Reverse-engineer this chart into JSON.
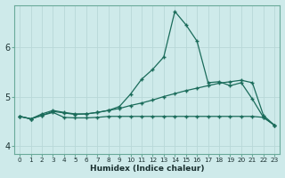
{
  "title": "",
  "xlabel": "Humidex (Indice chaleur)",
  "ylabel": "",
  "bg_color": "#ceeaea",
  "grid_color": "#b8d8d8",
  "line_color": "#1a6b5a",
  "xlim": [
    -0.5,
    23.5
  ],
  "ylim": [
    3.85,
    6.85
  ],
  "xtick_labels": [
    "0",
    "1",
    "2",
    "3",
    "4",
    "5",
    "6",
    "7",
    "8",
    "9",
    "10",
    "11",
    "12",
    "13",
    "14",
    "15",
    "16",
    "17",
    "18",
    "19",
    "20",
    "21",
    "22",
    "23"
  ],
  "ytick_values": [
    4,
    5,
    6
  ],
  "series_peak": {
    "x": [
      0,
      1,
      2,
      3,
      4,
      5,
      6,
      7,
      8,
      9,
      10,
      11,
      12,
      13,
      14,
      15,
      16,
      17,
      18,
      19,
      20,
      21,
      22,
      23
    ],
    "y": [
      4.6,
      4.55,
      4.65,
      4.72,
      4.68,
      4.65,
      4.65,
      4.68,
      4.72,
      4.8,
      5.05,
      5.35,
      5.55,
      5.8,
      6.72,
      6.45,
      6.12,
      5.28,
      5.3,
      5.22,
      5.28,
      4.95,
      4.58,
      4.42
    ]
  },
  "series_linear": {
    "x": [
      0,
      1,
      2,
      3,
      4,
      5,
      6,
      7,
      8,
      9,
      10,
      11,
      12,
      13,
      14,
      15,
      16,
      17,
      18,
      19,
      20,
      21,
      22,
      23
    ],
    "y": [
      4.6,
      4.55,
      4.62,
      4.7,
      4.67,
      4.64,
      4.65,
      4.68,
      4.72,
      4.76,
      4.82,
      4.87,
      4.93,
      5.0,
      5.06,
      5.12,
      5.17,
      5.22,
      5.27,
      5.3,
      5.33,
      5.28,
      4.62,
      4.42
    ]
  },
  "series_flat": {
    "x": [
      0,
      1,
      2,
      3,
      4,
      5,
      6,
      7,
      8,
      9,
      10,
      11,
      12,
      13,
      14,
      15,
      16,
      17,
      18,
      19,
      20,
      21,
      22,
      23
    ],
    "y": [
      4.6,
      4.55,
      4.62,
      4.68,
      4.58,
      4.57,
      4.57,
      4.58,
      4.6,
      4.6,
      4.6,
      4.6,
      4.6,
      4.6,
      4.6,
      4.6,
      4.6,
      4.6,
      4.6,
      4.6,
      4.6,
      4.6,
      4.58,
      4.42
    ]
  }
}
